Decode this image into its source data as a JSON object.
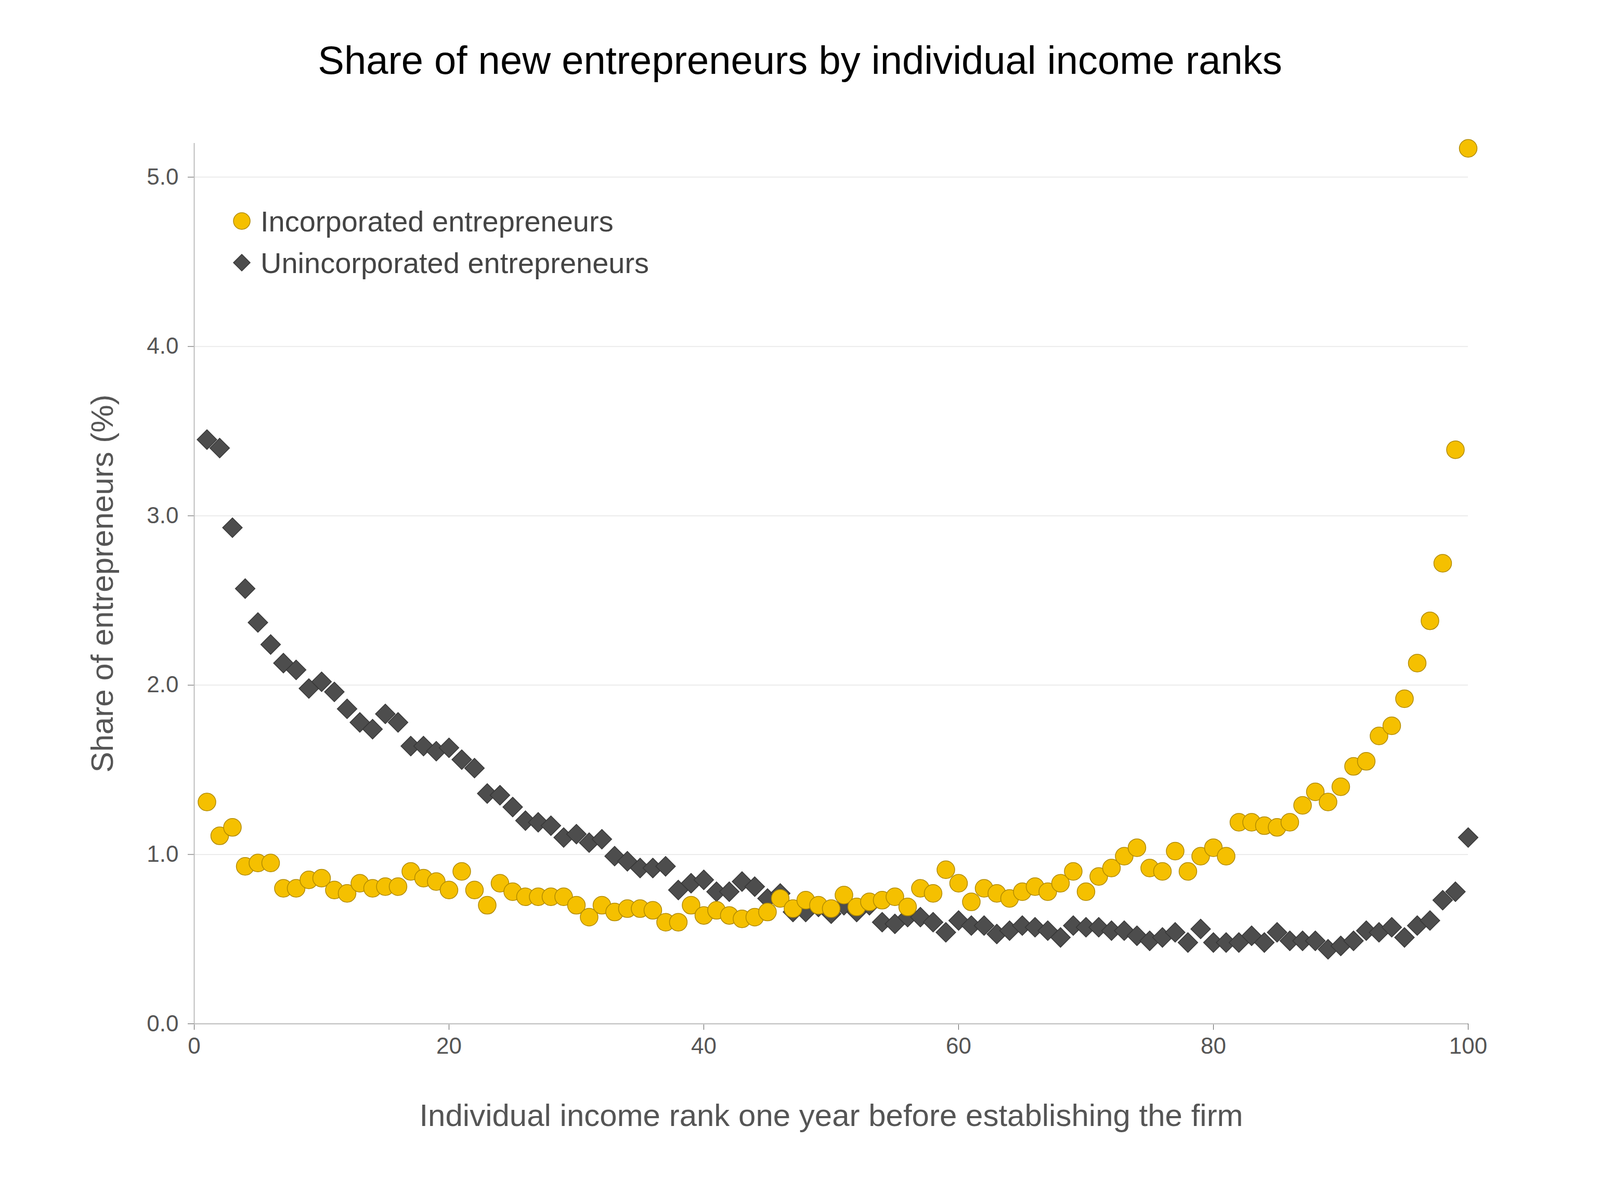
{
  "chart_data": {
    "type": "scatter",
    "title": "Share of new entrepreneurs by individual income ranks",
    "x_label": "Individual income rank one year before establishing the firm",
    "y_label": "Share of entrepreneurs (%)",
    "x": [
      1,
      2,
      3,
      4,
      5,
      6,
      7,
      8,
      9,
      10,
      11,
      12,
      13,
      14,
      15,
      16,
      17,
      18,
      19,
      20,
      21,
      22,
      23,
      24,
      25,
      26,
      27,
      28,
      29,
      30,
      31,
      32,
      33,
      34,
      35,
      36,
      37,
      38,
      39,
      40,
      41,
      42,
      43,
      44,
      45,
      46,
      47,
      48,
      49,
      50,
      51,
      52,
      53,
      54,
      55,
      56,
      57,
      58,
      59,
      60,
      61,
      62,
      63,
      64,
      65,
      66,
      67,
      68,
      69,
      70,
      71,
      72,
      73,
      74,
      75,
      76,
      77,
      78,
      79,
      80,
      81,
      82,
      83,
      84,
      85,
      86,
      87,
      88,
      89,
      90,
      91,
      92,
      93,
      94,
      95,
      96,
      97,
      98,
      99,
      100
    ],
    "series": [
      {
        "name": "Incorporated entrepreneurs",
        "color": "#f5c000",
        "marker": "circle",
        "values": [
          1.31,
          1.11,
          1.16,
          0.93,
          0.95,
          0.95,
          0.8,
          0.8,
          0.85,
          0.86,
          0.79,
          0.77,
          0.83,
          0.8,
          0.81,
          0.81,
          0.9,
          0.86,
          0.84,
          0.79,
          0.9,
          0.79,
          0.7,
          0.83,
          0.78,
          0.75,
          0.75,
          0.75,
          0.75,
          0.7,
          0.63,
          0.7,
          0.66,
          0.68,
          0.68,
          0.67,
          0.6,
          0.6,
          0.7,
          0.64,
          0.67,
          0.64,
          0.62,
          0.63,
          0.66,
          0.74,
          0.68,
          0.73,
          0.7,
          0.68,
          0.76,
          0.69,
          0.72,
          0.73,
          0.75,
          0.69,
          0.8,
          0.77,
          0.91,
          0.83,
          0.72,
          0.8,
          0.77,
          0.74,
          0.78,
          0.81,
          0.78,
          0.83,
          0.9,
          0.78,
          0.87,
          0.92,
          0.99,
          1.04,
          0.92,
          0.9,
          1.02,
          0.9,
          0.99,
          1.04,
          0.99,
          1.19,
          1.19,
          1.17,
          1.16,
          1.19,
          1.29,
          1.37,
          1.31,
          1.4,
          1.52,
          1.55,
          1.7,
          1.76,
          1.92,
          2.13,
          2.38,
          2.72,
          3.39,
          5.17
        ]
      },
      {
        "name": "Unincorporated entrepreneurs",
        "color": "#4d4d4d",
        "marker": "diamond",
        "values": [
          3.45,
          3.4,
          2.93,
          2.57,
          2.37,
          2.24,
          2.13,
          2.09,
          1.98,
          2.02,
          1.96,
          1.86,
          1.78,
          1.74,
          1.83,
          1.78,
          1.64,
          1.64,
          1.61,
          1.63,
          1.56,
          1.51,
          1.36,
          1.35,
          1.28,
          1.2,
          1.19,
          1.17,
          1.1,
          1.12,
          1.07,
          1.09,
          0.99,
          0.96,
          0.92,
          0.92,
          0.93,
          0.79,
          0.83,
          0.85,
          0.78,
          0.78,
          0.84,
          0.81,
          0.74,
          0.77,
          0.66,
          0.66,
          0.69,
          0.65,
          0.7,
          0.66,
          0.7,
          0.6,
          0.59,
          0.63,
          0.63,
          0.6,
          0.54,
          0.61,
          0.58,
          0.58,
          0.53,
          0.55,
          0.58,
          0.57,
          0.55,
          0.51,
          0.58,
          0.57,
          0.57,
          0.55,
          0.55,
          0.52,
          0.49,
          0.51,
          0.54,
          0.48,
          0.56,
          0.48,
          0.48,
          0.48,
          0.52,
          0.48,
          0.54,
          0.49,
          0.49,
          0.49,
          0.44,
          0.46,
          0.49,
          0.55,
          0.54,
          0.57,
          0.51,
          0.58,
          0.61,
          0.73,
          0.78,
          1.1
        ]
      }
    ],
    "xlim": [
      0,
      100
    ],
    "xticks": [
      0,
      20,
      40,
      60,
      80,
      100
    ],
    "ylim": [
      0,
      5.2
    ],
    "yticks": [
      0,
      1,
      2,
      3,
      4,
      5
    ],
    "grid": true,
    "legend": "upper left"
  }
}
